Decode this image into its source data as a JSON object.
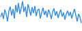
{
  "chart_data": {
    "type": "line",
    "color": "#3d8fdc",
    "tick_labels": false,
    "grid": false,
    "ylim": [
      0,
      100
    ],
    "values": [
      45,
      60,
      38,
      70,
      55,
      30,
      65,
      80,
      50,
      72,
      40,
      85,
      60,
      92,
      55,
      75,
      98,
      62,
      80,
      45,
      88,
      70,
      50,
      78,
      58,
      82,
      48,
      68,
      72,
      40,
      60,
      76,
      52,
      66,
      44,
      70,
      58,
      38,
      62,
      74,
      50,
      64,
      42,
      58,
      70,
      46,
      60,
      36,
      55,
      66,
      48,
      62,
      40,
      58,
      72,
      50,
      30,
      55,
      45,
      25
    ]
  }
}
